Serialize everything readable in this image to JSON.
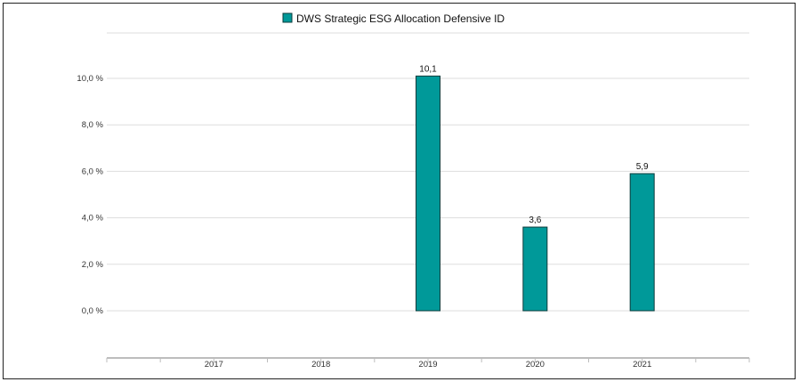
{
  "chart_data": {
    "type": "bar",
    "categories": [
      "2017",
      "2018",
      "2019",
      "2020",
      "2021"
    ],
    "series": [
      {
        "name": "DWS Strategic ESG Allocation Defensive  ID",
        "values": [
          null,
          null,
          10.1,
          3.6,
          5.9
        ],
        "labels": [
          "",
          "",
          "10,1",
          "3,6",
          "5,9"
        ],
        "color": "#009999"
      }
    ],
    "ylim": [
      0,
      12
    ],
    "yticks": [
      {
        "value": 0,
        "label": "0,0 %"
      },
      {
        "value": 2,
        "label": "2,0 %"
      },
      {
        "value": 4,
        "label": "4,0 %"
      },
      {
        "value": 6,
        "label": "6,0 %"
      },
      {
        "value": 8,
        "label": "8,0 %"
      },
      {
        "value": 10,
        "label": "10,0 %"
      }
    ],
    "grid": true,
    "legend": "top-center",
    "colors": {
      "bar": "#009999",
      "bar_stroke": "#0b3b3b",
      "grid": "#dddddd"
    }
  }
}
